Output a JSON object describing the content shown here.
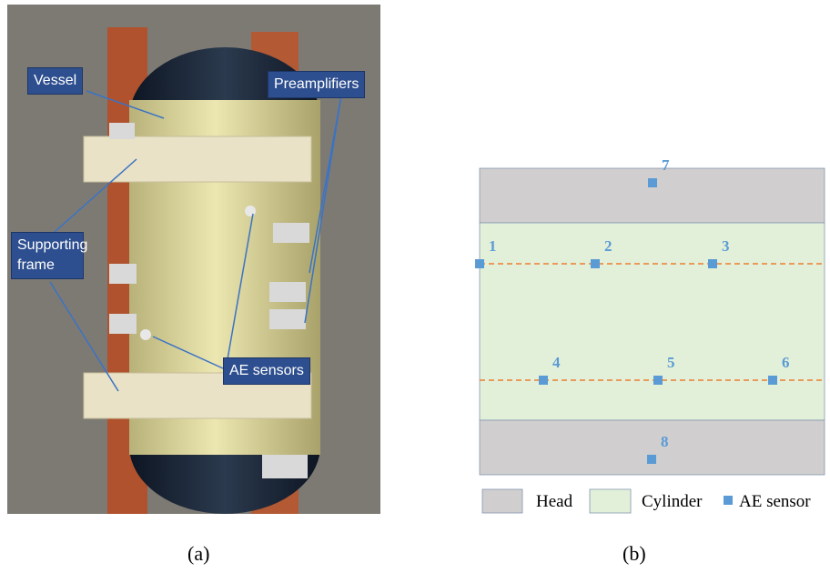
{
  "panel_a": {
    "callouts": [
      "Vessel",
      "Preamplifiers",
      "Supporting frame",
      "AE sensors"
    ],
    "caption": "(a)"
  },
  "panel_b": {
    "sensors": [
      "1",
      "2",
      "3",
      "4",
      "5",
      "6",
      "7",
      "8"
    ],
    "legend": [
      "Head",
      "Cylinder",
      "AE sensor"
    ],
    "caption": "(b)"
  }
}
